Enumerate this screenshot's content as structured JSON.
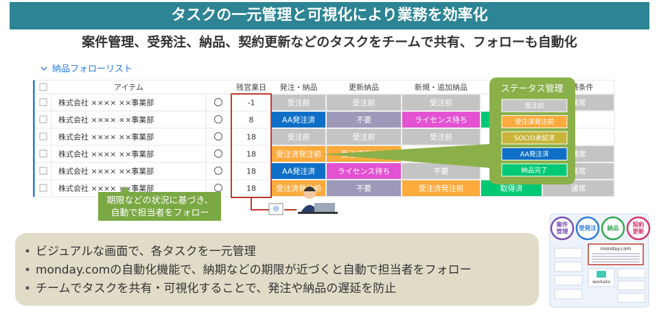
{
  "header": {
    "title": "タスクの一元管理と可視化により業務を効率化",
    "subtitle": "案件管理、受発注、納品、契約更新などのタスクをチームで共有、フォローも自動化"
  },
  "list": {
    "title": "納品フォローリスト",
    "columns": [
      null,
      "アイテム",
      null,
      "残営業日",
      "発注・納品",
      "更新納品",
      "新規・追加納品",
      null,
      "見積条件"
    ],
    "rows": [
      {
        "item": "株式会社 ×××× ××事業部",
        "days": -1,
        "cells": [
          {
            "text": "受注前",
            "color": "#c4c4c4"
          },
          {
            "text": "受注前",
            "color": "#c4c4c4"
          },
          {
            "text": "受注前",
            "color": "#c4c4c4"
          },
          null,
          {
            "text": "通常",
            "color": "#c4c4c4"
          }
        ]
      },
      {
        "item": "株式会社 ×××× ××事業部",
        "days": 8,
        "cells": [
          {
            "text": "AA発注済",
            "color": "#0f6fc6"
          },
          {
            "text": "不要",
            "color": "#9d99b9"
          },
          {
            "text": "ライセンス待ち",
            "color": "#e252d2"
          },
          {
            "text": null,
            "color": "#00c875"
          },
          null
        ]
      },
      {
        "item": "株式会社 ×××× ××事業部",
        "days": 18,
        "cells": [
          {
            "text": "受注前",
            "color": "#c4c4c4"
          },
          {
            "text": "受注前",
            "color": "#c4c4c4"
          },
          {
            "text": "受注前",
            "color": "#c4c4c4"
          },
          null,
          null
        ]
      },
      {
        "item": "株式会社 ×××× ××事業部",
        "days": 18,
        "cells": [
          {
            "text": "受注済発注前",
            "color": "#fdab3d"
          },
          {
            "text": "受注済発注前",
            "color": "#fdab3d"
          },
          null,
          null,
          {
            "text": "通常",
            "color": "#c4c4c4"
          }
        ]
      },
      {
        "item": "株式会社 ×××× ××事業部",
        "days": 18,
        "cells": [
          {
            "text": "AA発注済",
            "color": "#0f6fc6"
          },
          {
            "text": "ライセンス待ち",
            "color": "#e252d2"
          },
          {
            "text": "不要",
            "color": "#c4c4c4"
          },
          null,
          {
            "text": "通常",
            "color": "#c4c4c4"
          }
        ]
      },
      {
        "item": "株式会社 ×××× ××事業部",
        "days": 18,
        "cells": [
          {
            "text": "受注済発注前",
            "color": "#fdab3d"
          },
          {
            "text": "不要",
            "color": "#9d99b9"
          },
          {
            "text": "受注済発注前",
            "color": "#fdab3d"
          },
          {
            "text": "取得済",
            "color": "#00c875"
          },
          {
            "text": "通常",
            "color": "#c4c4c4"
          }
        ]
      }
    ]
  },
  "status": {
    "title": "ステータス管理",
    "items": [
      {
        "text": "受注前",
        "color": "#c4c4c4"
      },
      {
        "text": "受注済発注前",
        "color": "#fdab3d"
      },
      {
        "text": "SOCIO承認済",
        "color": "#c9b43a"
      },
      {
        "text": "AA発注済",
        "color": "#0f6fc6"
      },
      {
        "text": "納品完了",
        "color": "#00c875"
      }
    ]
  },
  "callout": {
    "lines": [
      "期限などの状況に基づき、",
      "自動で担当者をフォロー"
    ]
  },
  "bullets": [
    "ビジュアルな画面で、各タスクを一元管理",
    "monday.comの自動化機能で、納期などの期限が近づくと自動で担当者をフォロー",
    "チームでタスクを共有・可視化することで、発注や納品の遅延を防止"
  ],
  "diagram": {
    "circles": [
      {
        "lines": [
          "案件",
          "管理"
        ],
        "color": "#7b4fb5"
      },
      {
        "lines": [
          "受発注"
        ],
        "color": "#2c7bd6"
      },
      {
        "lines": [
          "納品"
        ],
        "color": "#2fa84f"
      },
      {
        "lines": [
          "契約",
          "更新"
        ],
        "color": "#d6336c"
      }
    ],
    "center": "monday.com",
    "hub": "workato"
  }
}
